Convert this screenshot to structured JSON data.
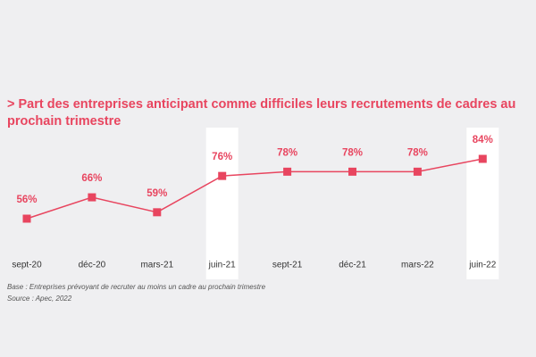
{
  "chart_data": {
    "type": "line",
    "title": "> Part des entreprises anticipant comme difficiles leurs recrutements de cadres au prochain trimestre",
    "categories": [
      "sept-20",
      "déc-20",
      "mars-21",
      "juin-21",
      "sept-21",
      "déc-21",
      "mars-22",
      "juin-22"
    ],
    "values": [
      56,
      66,
      59,
      76,
      78,
      78,
      78,
      84
    ],
    "value_labels": [
      "56%",
      "66%",
      "59%",
      "76%",
      "78%",
      "78%",
      "78%",
      "84%"
    ],
    "color": "#e8455f",
    "highlight": [
      "juin-21",
      "juin-22"
    ],
    "notes": [
      "Base : Entreprises prévoyant de recruter au moins un cadre au prochain trimestre",
      "Source : Apec, 2022"
    ]
  }
}
